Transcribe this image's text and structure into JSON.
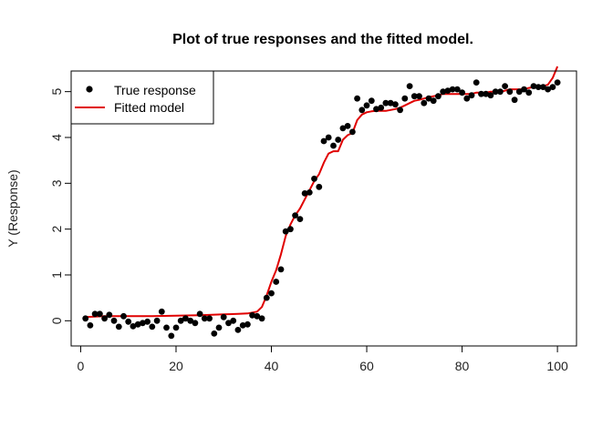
{
  "chart_data": {
    "type": "scatter",
    "title": "Plot of true responses and the fitted model.",
    "xlabel": "",
    "ylabel": "Y (Response)",
    "xlim": [
      -2,
      104
    ],
    "ylim": [
      -0.55,
      5.45
    ],
    "x_ticks": [
      0,
      20,
      40,
      60,
      80,
      100
    ],
    "y_ticks": [
      0,
      1,
      2,
      3,
      4,
      5
    ],
    "grid": false,
    "legend_position": "top-left",
    "series": [
      {
        "name": "True response",
        "kind": "points",
        "color": "#000000",
        "x": [
          1,
          2,
          3,
          4,
          5,
          6,
          7,
          8,
          9,
          10,
          11,
          12,
          13,
          14,
          15,
          16,
          17,
          18,
          19,
          20,
          21,
          22,
          23,
          24,
          25,
          26,
          27,
          28,
          29,
          30,
          31,
          32,
          33,
          34,
          35,
          36,
          37,
          38,
          39,
          40,
          41,
          42,
          43,
          44,
          45,
          46,
          47,
          48,
          49,
          50,
          51,
          52,
          53,
          54,
          55,
          56,
          57,
          58,
          59,
          60,
          61,
          62,
          63,
          64,
          65,
          66,
          67,
          68,
          69,
          70,
          71,
          72,
          73,
          74,
          75,
          76,
          77,
          78,
          79,
          80,
          81,
          82,
          83,
          84,
          85,
          86,
          87,
          88,
          89,
          90,
          91,
          92,
          93,
          94,
          95,
          96,
          97,
          98,
          99,
          100
        ],
        "y": [
          0.05,
          -0.1,
          0.15,
          0.15,
          0.05,
          0.13,
          0.0,
          -0.13,
          0.1,
          -0.02,
          -0.12,
          -0.08,
          -0.05,
          -0.02,
          -0.13,
          0.0,
          0.2,
          -0.15,
          -0.33,
          -0.15,
          0.0,
          0.05,
          0.0,
          -0.05,
          0.15,
          0.05,
          0.05,
          -0.28,
          -0.15,
          0.08,
          -0.05,
          0.0,
          -0.2,
          -0.1,
          -0.08,
          0.12,
          0.1,
          0.05,
          0.5,
          0.6,
          0.85,
          1.12,
          1.95,
          2.0,
          2.3,
          2.22,
          2.78,
          2.8,
          3.1,
          2.92,
          3.92,
          4.0,
          3.82,
          3.95,
          4.2,
          4.25,
          4.12,
          4.85,
          4.6,
          4.7,
          4.8,
          4.62,
          4.65,
          4.75,
          4.75,
          4.72,
          4.6,
          4.85,
          5.12,
          4.9,
          4.9,
          4.75,
          4.85,
          4.8,
          4.9,
          5.0,
          5.02,
          5.05,
          5.05,
          4.98,
          4.85,
          4.92,
          5.2,
          4.95,
          4.95,
          4.92,
          5.0,
          5.0,
          5.12,
          5.0,
          4.82,
          5.0,
          5.05,
          4.98,
          5.12,
          5.1,
          5.1,
          5.05,
          5.1,
          5.2
        ]
      },
      {
        "name": "Fitted model",
        "kind": "line",
        "color": "#e00000",
        "x": [
          1,
          5,
          10,
          15,
          20,
          25,
          30,
          33,
          35,
          36,
          37,
          38,
          39,
          40,
          41,
          42,
          43,
          44,
          45,
          46,
          47,
          48,
          49,
          50,
          51,
          52,
          53,
          54,
          55,
          56,
          57,
          58,
          59,
          60,
          61,
          62,
          63,
          64,
          65,
          66,
          67,
          68,
          69,
          70,
          71,
          72,
          73,
          74,
          75,
          76,
          77,
          78,
          79,
          80,
          81,
          82,
          83,
          84,
          85,
          86,
          87,
          88,
          89,
          90,
          91,
          92,
          93,
          94,
          95,
          96,
          97,
          98,
          99,
          100
        ],
        "y": [
          0.08,
          0.1,
          0.1,
          0.1,
          0.11,
          0.12,
          0.14,
          0.15,
          0.16,
          0.18,
          0.2,
          0.3,
          0.55,
          0.85,
          1.1,
          1.45,
          1.85,
          2.1,
          2.3,
          2.45,
          2.65,
          2.85,
          3.05,
          3.2,
          3.45,
          3.65,
          3.7,
          3.7,
          3.95,
          4.05,
          4.1,
          4.38,
          4.5,
          4.55,
          4.57,
          4.58,
          4.58,
          4.58,
          4.6,
          4.62,
          4.65,
          4.7,
          4.75,
          4.8,
          4.82,
          4.85,
          4.88,
          4.9,
          4.92,
          4.95,
          4.95,
          4.95,
          4.95,
          4.95,
          4.95,
          4.95,
          4.98,
          4.98,
          4.98,
          5.0,
          5.0,
          5.0,
          5.02,
          5.05,
          5.05,
          5.05,
          5.05,
          5.08,
          5.1,
          5.1,
          5.12,
          5.15,
          5.3,
          5.55
        ]
      }
    ]
  }
}
